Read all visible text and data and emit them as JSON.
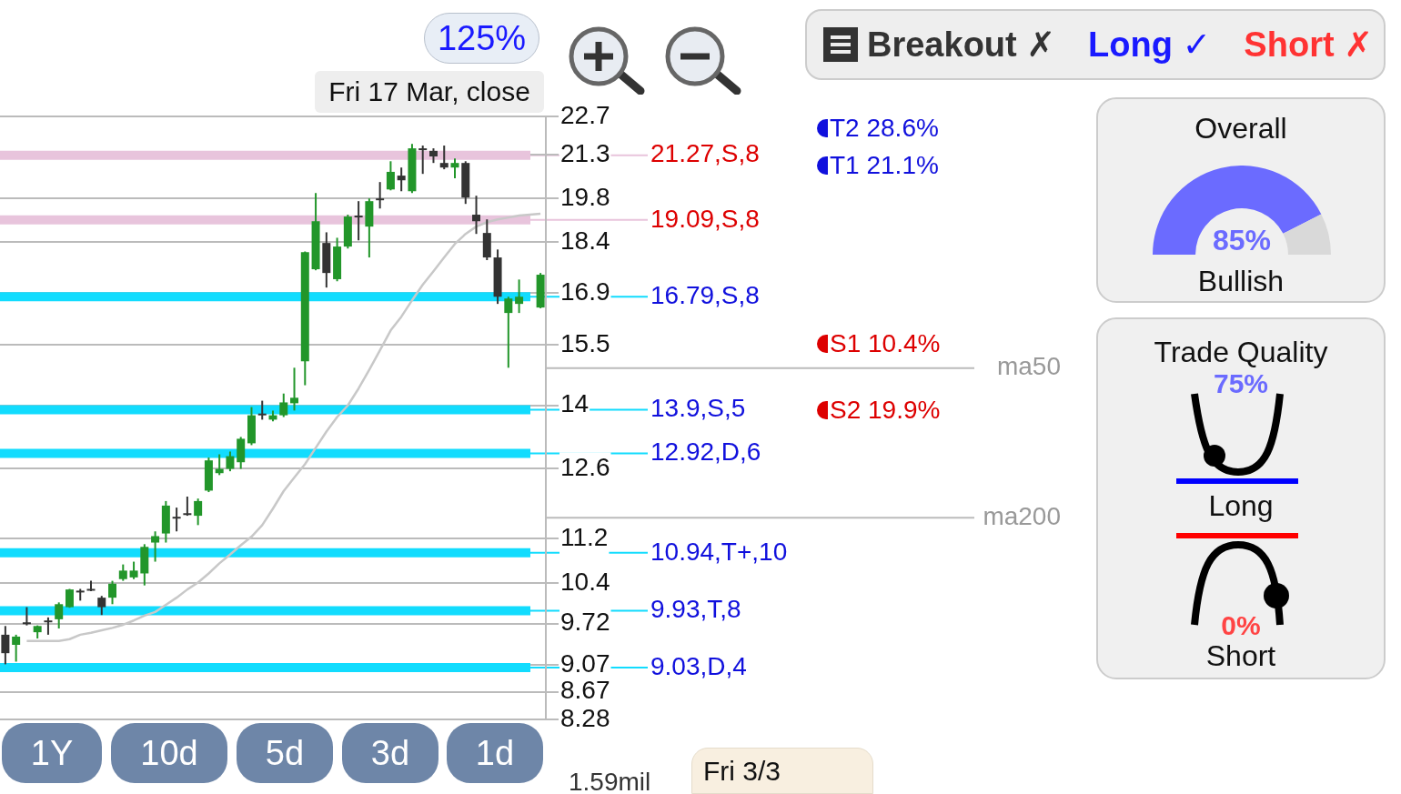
{
  "chart_data": [
    {
      "type": "candlestick",
      "categories": [
        null,
        null,
        null,
        null,
        null,
        null,
        null,
        null,
        null,
        null,
        null,
        null,
        null,
        null,
        null,
        null,
        null,
        null,
        null,
        null,
        null,
        null,
        null,
        null,
        null,
        null,
        null,
        null,
        null,
        null,
        null,
        null,
        null,
        null,
        null,
        null,
        null,
        null,
        null,
        null,
        null,
        null,
        null,
        null,
        null,
        null,
        null,
        null,
        null,
        null,
        null
      ],
      "ohlc": [
        [
          9.54,
          9.68,
          9.08,
          9.25
        ],
        [
          9.38,
          9.54,
          9.12,
          9.51
        ],
        [
          9.74,
          9.99,
          9.69,
          9.74
        ],
        [
          9.58,
          9.69,
          9.48,
          9.68
        ],
        [
          9.77,
          9.82,
          9.54,
          9.77
        ],
        [
          9.79,
          10.07,
          9.64,
          10.04
        ],
        [
          9.99,
          10.3,
          9.98,
          10.29
        ],
        [
          10.27,
          10.3,
          10.1,
          10.27
        ],
        [
          10.3,
          10.44,
          10.26,
          10.3
        ],
        [
          10.15,
          10.18,
          9.86,
          9.99
        ],
        [
          10.15,
          10.44,
          10.04,
          10.39
        ],
        [
          10.47,
          10.73,
          10.44,
          10.62
        ],
        [
          10.5,
          10.78,
          10.47,
          10.62
        ],
        [
          10.57,
          11.1,
          10.36,
          11.05
        ],
        [
          11.13,
          11.34,
          10.78,
          11.25
        ],
        [
          11.3,
          11.93,
          11.13,
          11.84
        ],
        [
          11.62,
          11.8,
          11.34,
          11.62
        ],
        [
          11.69,
          12.02,
          11.64,
          11.69
        ],
        [
          11.64,
          11.98,
          11.46,
          11.93
        ],
        [
          12.14,
          12.83,
          12.11,
          12.77
        ],
        [
          12.5,
          12.9,
          12.46,
          12.59
        ],
        [
          12.59,
          12.96,
          12.54,
          12.86
        ],
        [
          12.73,
          13.28,
          12.59,
          13.24
        ],
        [
          13.14,
          13.96,
          13.1,
          13.77
        ],
        [
          13.81,
          14.11,
          13.67,
          13.81
        ],
        [
          13.67,
          13.88,
          13.63,
          13.77
        ],
        [
          13.77,
          14.28,
          13.73,
          14.07
        ],
        [
          14.05,
          14.91,
          13.88,
          14.18
        ],
        [
          15.07,
          18.11,
          14.48,
          18.09
        ],
        [
          17.58,
          19.97,
          17.55,
          19.05
        ],
        [
          18.37,
          18.7,
          17.05,
          17.47
        ],
        [
          17.29,
          18.53,
          17.23,
          18.26
        ],
        [
          18.26,
          19.26,
          18.2,
          19.2
        ],
        [
          19.23,
          19.7,
          18.45,
          19.23
        ],
        [
          18.88,
          19.79,
          17.93,
          19.7
        ],
        [
          19.79,
          20.34,
          19.46,
          19.79
        ],
        [
          20.09,
          21.06,
          20.06,
          20.69
        ],
        [
          20.56,
          20.84,
          20.03,
          20.4
        ],
        [
          20.03,
          21.68,
          19.97,
          21.52
        ],
        [
          21.52,
          21.62,
          20.62,
          21.52
        ],
        [
          21.43,
          21.52,
          21.0,
          21.23
        ],
        [
          21.0,
          21.62,
          20.78,
          20.84
        ],
        [
          20.84,
          21.16,
          20.47,
          21.0
        ],
        [
          21.0,
          21.06,
          19.61,
          19.82
        ],
        [
          19.26,
          19.88,
          18.65,
          19.05
        ],
        [
          18.68,
          19.11,
          17.85,
          17.93
        ],
        [
          17.93,
          18.17,
          16.59,
          16.79
        ],
        [
          16.34,
          16.79,
          14.91,
          16.74
        ],
        [
          16.59,
          17.28,
          16.34,
          16.79
        ],
        null,
        [
          16.49,
          17.47,
          16.47,
          17.42
        ]
      ],
      "colors": [
        "#333333",
        "#22962a",
        "#333333",
        "#22962a",
        "#333333",
        "#22962a",
        "#22962a",
        "#333333",
        "#333333",
        "#333333",
        "#22962a",
        "#22962a",
        "#22962a",
        "#22962a",
        "#22962a",
        "#22962a",
        "#333333",
        "#333333",
        "#22962a",
        "#22962a",
        "#22962a",
        "#22962a",
        "#22962a",
        "#22962a",
        "#333333",
        "#22962a",
        "#22962a",
        "#22962a",
        "#22962a",
        "#22962a",
        "#333333",
        "#22962a",
        "#22962a",
        "#333333",
        "#22962a",
        "#333333",
        "#22962a",
        "#333333",
        "#22962a",
        "#333333",
        "#333333",
        "#333333",
        "#22962a",
        "#333333",
        "#333333",
        "#333333",
        "#333333",
        "#22962a",
        "#22962a",
        null,
        "#22962a"
      ],
      "series": [
        {
          "type": "line",
          "color": "#c8c8c8",
          "values": [
            null,
            null,
            9.44,
            9.44,
            9.44,
            9.44,
            9.47,
            9.54,
            9.57,
            9.61,
            9.65,
            9.7,
            9.77,
            9.85,
            9.91,
            10.03,
            10.15,
            10.29,
            10.41,
            10.57,
            10.75,
            10.91,
            11.08,
            11.24,
            11.46,
            11.78,
            12.13,
            12.41,
            12.69,
            13.04,
            13.4,
            13.73,
            14.0,
            14.4,
            14.86,
            15.35,
            15.87,
            16.24,
            16.69,
            17.13,
            17.52,
            17.93,
            18.34,
            18.65,
            18.88,
            19.02,
            19.11,
            19.17,
            19.23,
            19.26,
            19.29
          ]
        }
      ],
      "log": true,
      "ylim": [
        8.28,
        22.7
      ],
      "yticks": [
        8.28,
        8.67,
        9.07,
        9.72,
        10.4,
        11.2,
        12.6,
        14,
        15.5,
        16.9,
        18.4,
        19.8,
        21.3,
        22.7
      ],
      "grid": "y",
      "legend": false,
      "tick_labels": "y",
      "ref_lines": [
        {
          "axis": "y",
          "value": 21.27,
          "label": "21.27,S,8",
          "color": "#e8c4dc"
        },
        {
          "axis": "y",
          "value": 19.09,
          "label": "19.09,S,8",
          "color": "#e8c4dc"
        },
        {
          "axis": "y",
          "value": 16.79,
          "label": "16.79,S,8",
          "color": "#12dcfe"
        },
        {
          "axis": "y",
          "value": 13.9,
          "label": "13.9,S,5",
          "color": "#12dcfe"
        },
        {
          "axis": "y",
          "value": 12.92,
          "label": "12.92,D,6",
          "color": "#12dcfe"
        },
        {
          "axis": "y",
          "value": 10.94,
          "label": "10.94,T+,10",
          "color": "#12dcfe"
        },
        {
          "axis": "y",
          "value": 9.93,
          "label": "9.93,T,8",
          "color": "#12dcfe"
        },
        {
          "axis": "y",
          "value": 9.03,
          "label": "9.03,D,4",
          "color": "#12dcfe"
        },
        {
          "axis": "y",
          "value": 14.9,
          "label": "ma50"
        },
        {
          "axis": "y",
          "value": 11.6,
          "label": "ma200"
        }
      ],
      "annotations": [
        "125%",
        "Fri 17 Mar, close",
        "1Y",
        "10d",
        "5d",
        "3d",
        "1d",
        "1.59mil",
        "Fri 3/3",
        "Breakout ✗",
        "Long ✓",
        "Short ✗",
        "T2 28.6%",
        "T1 21.1%",
        "S1 10.4%",
        "S2 19.9%"
      ]
    },
    {
      "type": "donut",
      "title": "Overall",
      "categories": [
        null,
        null
      ],
      "values": [
        85,
        15
      ],
      "colors": [
        "#6b6bff",
        "#d9d9d9"
      ],
      "value_labels": [
        "85%",
        null
      ],
      "annotations": [
        "Bullish"
      ],
      "legend": false
    },
    {
      "type": "other",
      "title": "Trade Quality",
      "annotations": [
        "75%",
        "Long",
        "0%",
        "Short"
      ]
    }
  ]
}
